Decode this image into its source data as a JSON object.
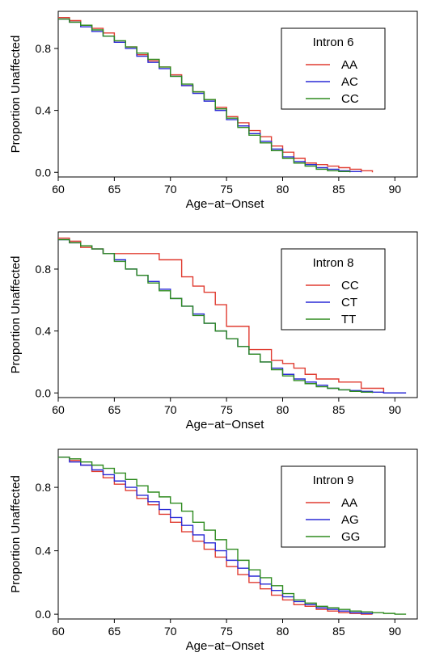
{
  "chart_data": [
    {
      "type": "line",
      "step": true,
      "title": "",
      "xlabel": "Age−at−Onset",
      "ylabel": "Proportion Unaffected",
      "xlim": [
        60,
        92
      ],
      "ylim": [
        -0.03,
        1.04
      ],
      "x_ticks": [
        60,
        65,
        70,
        75,
        80,
        85,
        90
      ],
      "y_ticks": [
        0.0,
        0.4,
        0.8
      ],
      "y_tick_labels": [
        "0.0",
        "0.4",
        "0.8"
      ],
      "grid": false,
      "legend": {
        "title": "Intron 6",
        "position": "top-right"
      },
      "series": [
        {
          "name": "AA",
          "color": "#e03c31",
          "x": [
            60,
            61,
            62,
            63,
            64,
            65,
            66,
            67,
            68,
            69,
            70,
            71,
            72,
            73,
            74,
            75,
            76,
            77,
            78,
            79,
            80,
            81,
            82,
            83,
            84,
            85,
            86,
            87,
            88
          ],
          "y": [
            1.0,
            0.98,
            0.95,
            0.93,
            0.9,
            0.84,
            0.81,
            0.76,
            0.72,
            0.68,
            0.63,
            0.56,
            0.52,
            0.47,
            0.42,
            0.36,
            0.32,
            0.27,
            0.23,
            0.17,
            0.13,
            0.09,
            0.06,
            0.05,
            0.04,
            0.03,
            0.02,
            0.01,
            0.0
          ]
        },
        {
          "name": "AC",
          "color": "#2a2ad6",
          "x": [
            60,
            61,
            62,
            63,
            64,
            65,
            66,
            67,
            68,
            69,
            70,
            71,
            72,
            73,
            74,
            75,
            76,
            77,
            78,
            79,
            80,
            81,
            82,
            83,
            84,
            85,
            86,
            87
          ],
          "y": [
            0.99,
            0.97,
            0.94,
            0.91,
            0.88,
            0.84,
            0.8,
            0.75,
            0.71,
            0.67,
            0.62,
            0.56,
            0.51,
            0.46,
            0.4,
            0.34,
            0.3,
            0.25,
            0.2,
            0.15,
            0.1,
            0.07,
            0.05,
            0.03,
            0.02,
            0.01,
            0.005,
            0.0
          ]
        },
        {
          "name": "CC",
          "color": "#2e8b1f",
          "x": [
            60,
            61,
            62,
            63,
            64,
            65,
            66,
            67,
            68,
            69,
            70,
            71,
            72,
            73,
            74,
            75,
            76,
            77,
            78,
            79,
            80,
            81,
            82,
            83,
            84,
            85,
            86
          ],
          "y": [
            0.99,
            0.97,
            0.95,
            0.92,
            0.88,
            0.85,
            0.81,
            0.77,
            0.73,
            0.68,
            0.62,
            0.57,
            0.52,
            0.47,
            0.41,
            0.35,
            0.29,
            0.24,
            0.19,
            0.14,
            0.09,
            0.06,
            0.04,
            0.02,
            0.01,
            0.005,
            0.0
          ]
        }
      ]
    },
    {
      "type": "line",
      "step": true,
      "title": "",
      "xlabel": "Age−at−Onset",
      "ylabel": "Proportion Unaffected",
      "xlim": [
        60,
        92
      ],
      "ylim": [
        -0.03,
        1.04
      ],
      "x_ticks": [
        60,
        65,
        70,
        75,
        80,
        85,
        90
      ],
      "y_ticks": [
        0.0,
        0.4,
        0.8
      ],
      "y_tick_labels": [
        "0.0",
        "0.4",
        "0.8"
      ],
      "grid": false,
      "legend": {
        "title": "Intron 8",
        "position": "top-right"
      },
      "series": [
        {
          "name": "CC",
          "color": "#e03c31",
          "x": [
            60,
            61,
            62,
            63,
            64,
            65,
            69,
            71,
            72,
            73,
            74,
            75,
            77,
            79,
            80,
            81,
            82,
            83,
            85,
            87,
            89,
            90
          ],
          "y": [
            1.0,
            0.98,
            0.94,
            0.93,
            0.9,
            0.9,
            0.86,
            0.75,
            0.69,
            0.65,
            0.57,
            0.43,
            0.28,
            0.21,
            0.19,
            0.16,
            0.12,
            0.09,
            0.07,
            0.03,
            0.0,
            0.0
          ]
        },
        {
          "name": "CT",
          "color": "#2a2ad6",
          "x": [
            60,
            61,
            62,
            63,
            64,
            65,
            66,
            67,
            68,
            69,
            70,
            71,
            72,
            73,
            74,
            75,
            76,
            77,
            78,
            79,
            80,
            81,
            82,
            83,
            84,
            85,
            86,
            87,
            88,
            89,
            91
          ],
          "y": [
            0.99,
            0.97,
            0.95,
            0.93,
            0.9,
            0.86,
            0.8,
            0.76,
            0.72,
            0.67,
            0.61,
            0.56,
            0.51,
            0.45,
            0.4,
            0.35,
            0.3,
            0.25,
            0.2,
            0.16,
            0.12,
            0.09,
            0.07,
            0.05,
            0.03,
            0.02,
            0.015,
            0.01,
            0.005,
            0.0,
            0.0
          ]
        },
        {
          "name": "TT",
          "color": "#2e8b1f",
          "x": [
            60,
            61,
            62,
            63,
            64,
            65,
            66,
            67,
            68,
            69,
            70,
            71,
            72,
            73,
            74,
            75,
            76,
            77,
            78,
            79,
            80,
            81,
            82,
            83,
            84,
            85,
            86,
            87,
            88
          ],
          "y": [
            0.99,
            0.97,
            0.95,
            0.93,
            0.9,
            0.85,
            0.8,
            0.76,
            0.71,
            0.66,
            0.61,
            0.56,
            0.5,
            0.45,
            0.4,
            0.35,
            0.3,
            0.25,
            0.2,
            0.15,
            0.11,
            0.08,
            0.06,
            0.04,
            0.03,
            0.02,
            0.01,
            0.005,
            0.0
          ]
        }
      ]
    },
    {
      "type": "line",
      "step": true,
      "title": "",
      "xlabel": "Age−at−Onset",
      "ylabel": "Proportion Unaffected",
      "xlim": [
        60,
        92
      ],
      "ylim": [
        -0.03,
        1.04
      ],
      "x_ticks": [
        60,
        65,
        70,
        75,
        80,
        85,
        90
      ],
      "y_ticks": [
        0.0,
        0.4,
        0.8
      ],
      "y_tick_labels": [
        "0.0",
        "0.4",
        "0.8"
      ],
      "grid": false,
      "legend": {
        "title": "Intron 9",
        "position": "top-right"
      },
      "series": [
        {
          "name": "AA",
          "color": "#e03c31",
          "x": [
            60,
            61,
            62,
            63,
            64,
            65,
            66,
            67,
            68,
            69,
            70,
            71,
            72,
            73,
            74,
            75,
            76,
            77,
            78,
            79,
            80,
            81,
            82,
            83,
            84,
            85,
            86,
            87,
            88
          ],
          "y": [
            0.99,
            0.97,
            0.94,
            0.9,
            0.86,
            0.82,
            0.78,
            0.73,
            0.69,
            0.63,
            0.58,
            0.52,
            0.46,
            0.41,
            0.36,
            0.3,
            0.25,
            0.2,
            0.16,
            0.12,
            0.09,
            0.06,
            0.05,
            0.03,
            0.02,
            0.01,
            0.005,
            0.0,
            0.0
          ]
        },
        {
          "name": "AG",
          "color": "#2a2ad6",
          "x": [
            60,
            61,
            62,
            63,
            64,
            65,
            66,
            67,
            68,
            69,
            70,
            71,
            72,
            73,
            74,
            75,
            76,
            77,
            78,
            79,
            80,
            81,
            82,
            83,
            84,
            85,
            86,
            87,
            88
          ],
          "y": [
            0.99,
            0.96,
            0.94,
            0.91,
            0.88,
            0.84,
            0.8,
            0.75,
            0.71,
            0.66,
            0.61,
            0.56,
            0.5,
            0.45,
            0.4,
            0.34,
            0.29,
            0.24,
            0.19,
            0.15,
            0.11,
            0.08,
            0.06,
            0.04,
            0.03,
            0.02,
            0.01,
            0.005,
            0.0
          ]
        },
        {
          "name": "GG",
          "color": "#2e8b1f",
          "x": [
            60,
            61,
            62,
            63,
            64,
            65,
            66,
            67,
            68,
            69,
            70,
            71,
            72,
            73,
            74,
            75,
            76,
            77,
            78,
            79,
            80,
            81,
            82,
            83,
            84,
            85,
            86,
            87,
            88,
            89,
            90,
            91
          ],
          "y": [
            0.99,
            0.98,
            0.96,
            0.94,
            0.92,
            0.89,
            0.85,
            0.81,
            0.77,
            0.74,
            0.7,
            0.65,
            0.58,
            0.53,
            0.47,
            0.41,
            0.34,
            0.28,
            0.23,
            0.18,
            0.13,
            0.09,
            0.07,
            0.05,
            0.04,
            0.03,
            0.02,
            0.015,
            0.01,
            0.005,
            0.0,
            0.0
          ]
        }
      ]
    }
  ]
}
